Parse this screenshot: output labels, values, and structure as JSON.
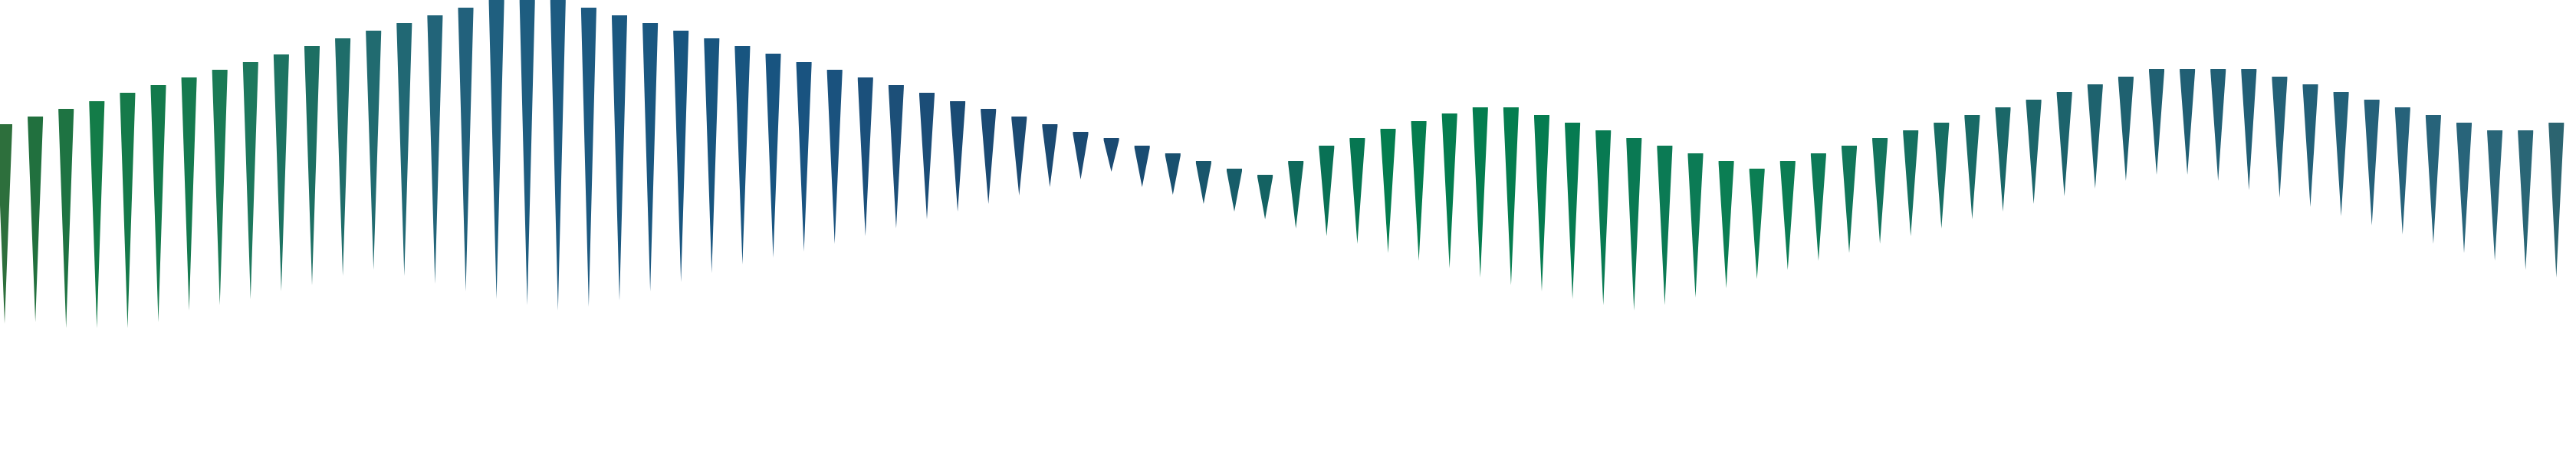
{
  "chart_data": {
    "type": "bar",
    "title": "",
    "xlabel": "",
    "ylabel": "",
    "grid": false,
    "legend": "none",
    "marker": "downward-triangle",
    "colors": [
      "#2d6f3c",
      "#137c48",
      "#1d6f63",
      "#1f5f7f",
      "#18557f",
      "#1a4b74",
      "#047d4f",
      "#0b7e53",
      "#2c6470"
    ],
    "series": [
      {
        "values": [
          {
            "top": 162,
            "bottom": 422,
            "color": "#2d6f3c"
          },
          {
            "top": 152,
            "bottom": 420,
            "color": "#21703e"
          },
          {
            "top": 142,
            "bottom": 428,
            "color": "#1e7342"
          },
          {
            "top": 132,
            "bottom": 428,
            "color": "#137c48"
          },
          {
            "top": 121,
            "bottom": 428,
            "color": "#157a4a"
          },
          {
            "top": 111,
            "bottom": 420,
            "color": "#137a4c"
          },
          {
            "top": 101,
            "bottom": 405,
            "color": "#157a4f"
          },
          {
            "top": 91,
            "bottom": 398,
            "color": "#1a7a55"
          },
          {
            "top": 81,
            "bottom": 390,
            "color": "#1d785d"
          },
          {
            "top": 71,
            "bottom": 380,
            "color": "#1d7362"
          },
          {
            "top": 60,
            "bottom": 372,
            "color": "#1d6f63"
          },
          {
            "top": 50,
            "bottom": 360,
            "color": "#1f6d6a"
          },
          {
            "top": 40,
            "bottom": 352,
            "color": "#216b70"
          },
          {
            "top": 30,
            "bottom": 360,
            "color": "#216874"
          },
          {
            "top": 20,
            "bottom": 370,
            "color": "#226479"
          },
          {
            "top": 10,
            "bottom": 380,
            "color": "#22617c"
          },
          {
            "top": 0,
            "bottom": 390,
            "color": "#1f5f7f"
          },
          {
            "top": 0,
            "bottom": 398,
            "color": "#1e5d80"
          },
          {
            "top": 0,
            "bottom": 405,
            "color": "#1d5b81"
          },
          {
            "top": 10,
            "bottom": 400,
            "color": "#1d5a81"
          },
          {
            "top": 20,
            "bottom": 392,
            "color": "#1b5880"
          },
          {
            "top": 30,
            "bottom": 380,
            "color": "#1a5780"
          },
          {
            "top": 40,
            "bottom": 368,
            "color": "#18557f"
          },
          {
            "top": 50,
            "bottom": 356,
            "color": "#18557f"
          },
          {
            "top": 60,
            "bottom": 345,
            "color": "#185580"
          },
          {
            "top": 70,
            "bottom": 336,
            "color": "#185480"
          },
          {
            "top": 81,
            "bottom": 328,
            "color": "#195380"
          },
          {
            "top": 91,
            "bottom": 318,
            "color": "#1a527e"
          },
          {
            "top": 101,
            "bottom": 308,
            "color": "#1b507b"
          },
          {
            "top": 111,
            "bottom": 298,
            "color": "#1c4f78"
          },
          {
            "top": 121,
            "bottom": 286,
            "color": "#1b4d77"
          },
          {
            "top": 132,
            "bottom": 276,
            "color": "#1a4b74"
          },
          {
            "top": 142,
            "bottom": 266,
            "color": "#1b4a73"
          },
          {
            "top": 152,
            "bottom": 255,
            "color": "#1b4a72"
          },
          {
            "top": 162,
            "bottom": 244,
            "color": "#1b4a72"
          },
          {
            "top": 172,
            "bottom": 234,
            "color": "#1b4a72"
          },
          {
            "top": 180,
            "bottom": 224,
            "color": "#1b4a72"
          },
          {
            "top": 190,
            "bottom": 244,
            "color": "#1a4c72"
          },
          {
            "top": 200,
            "bottom": 254,
            "color": "#19506f"
          },
          {
            "top": 210,
            "bottom": 266,
            "color": "#19566c"
          },
          {
            "top": 220,
            "bottom": 276,
            "color": "#175d69"
          },
          {
            "top": 228,
            "bottom": 286,
            "color": "#146262"
          },
          {
            "top": 210,
            "bottom": 298,
            "color": "#0f695b"
          },
          {
            "top": 190,
            "bottom": 308,
            "color": "#097155"
          },
          {
            "top": 180,
            "bottom": 318,
            "color": "#067651"
          },
          {
            "top": 168,
            "bottom": 330,
            "color": "#047d4f"
          },
          {
            "top": 158,
            "bottom": 340,
            "color": "#047d4f"
          },
          {
            "top": 148,
            "bottom": 350,
            "color": "#047d4f"
          },
          {
            "top": 140,
            "bottom": 362,
            "color": "#047d4f"
          },
          {
            "top": 140,
            "bottom": 372,
            "color": "#057d4f"
          },
          {
            "top": 150,
            "bottom": 380,
            "color": "#057c50"
          },
          {
            "top": 160,
            "bottom": 390,
            "color": "#067b51"
          },
          {
            "top": 170,
            "bottom": 398,
            "color": "#087a52"
          },
          {
            "top": 180,
            "bottom": 405,
            "color": "#0a7953"
          },
          {
            "top": 190,
            "bottom": 398,
            "color": "#0b7a54"
          },
          {
            "top": 200,
            "bottom": 388,
            "color": "#0c7b55"
          },
          {
            "top": 210,
            "bottom": 376,
            "color": "#0b7e53"
          },
          {
            "top": 220,
            "bottom": 364,
            "color": "#0b7e53"
          },
          {
            "top": 210,
            "bottom": 352,
            "color": "#0b7d54"
          },
          {
            "top": 200,
            "bottom": 340,
            "color": "#0d7a57"
          },
          {
            "top": 190,
            "bottom": 330,
            "color": "#11775a"
          },
          {
            "top": 180,
            "bottom": 318,
            "color": "#13745d"
          },
          {
            "top": 170,
            "bottom": 308,
            "color": "#157060"
          },
          {
            "top": 160,
            "bottom": 298,
            "color": "#176d63"
          },
          {
            "top": 150,
            "bottom": 286,
            "color": "#196a66"
          },
          {
            "top": 140,
            "bottom": 276,
            "color": "#1a6768"
          },
          {
            "top": 130,
            "bottom": 266,
            "color": "#1c656a"
          },
          {
            "top": 120,
            "bottom": 256,
            "color": "#1d636c"
          },
          {
            "top": 110,
            "bottom": 246,
            "color": "#1e626e"
          },
          {
            "top": 100,
            "bottom": 236,
            "color": "#1f6170"
          },
          {
            "top": 90,
            "bottom": 228,
            "color": "#206072"
          },
          {
            "top": 90,
            "bottom": 228,
            "color": "#215f74"
          },
          {
            "top": 90,
            "bottom": 236,
            "color": "#215f75"
          },
          {
            "top": 90,
            "bottom": 248,
            "color": "#225f76"
          },
          {
            "top": 100,
            "bottom": 258,
            "color": "#236077"
          },
          {
            "top": 110,
            "bottom": 270,
            "color": "#236078"
          },
          {
            "top": 120,
            "bottom": 282,
            "color": "#246179"
          },
          {
            "top": 130,
            "bottom": 294,
            "color": "#25617a"
          },
          {
            "top": 140,
            "bottom": 306,
            "color": "#26627a"
          },
          {
            "top": 150,
            "bottom": 318,
            "color": "#27637a"
          },
          {
            "top": 160,
            "bottom": 330,
            "color": "#28647a"
          },
          {
            "top": 170,
            "bottom": 340,
            "color": "#296578"
          },
          {
            "top": 170,
            "bottom": 352,
            "color": "#2a6676"
          },
          {
            "top": 160,
            "bottom": 362,
            "color": "#2c6470"
          },
          {
            "top": 150,
            "bottom": 372,
            "color": "#2d6370"
          }
        ]
      }
    ]
  }
}
